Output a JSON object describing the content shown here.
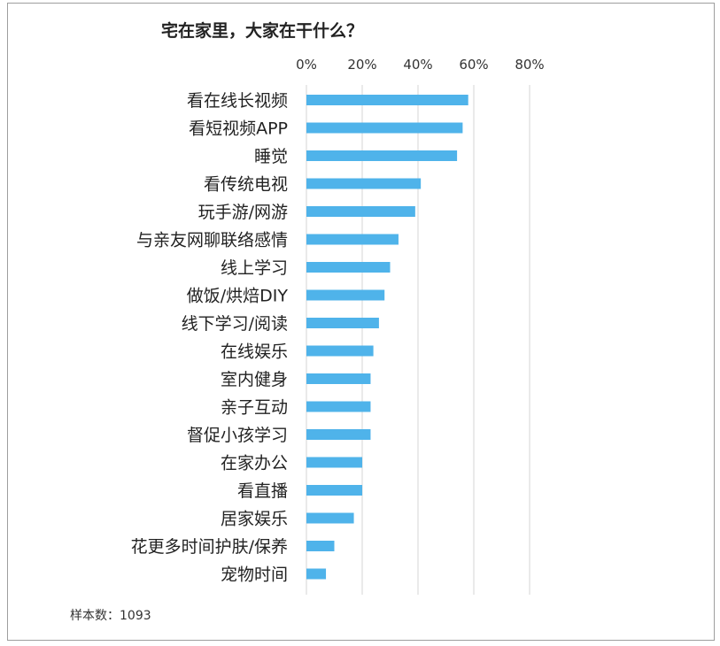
{
  "chart_data": {
    "type": "bar",
    "orientation": "horizontal",
    "title": "宅在家里，大家在干什么？",
    "xlabel": "",
    "ylabel": "",
    "xlim": [
      0,
      80
    ],
    "x_ticks": [
      0,
      20,
      40,
      60,
      80
    ],
    "x_tick_labels": [
      "0%",
      "20%",
      "40%",
      "60%",
      "80%"
    ],
    "tick_position": "top",
    "grid": true,
    "categories": [
      "看在线长视频",
      "看短视频APP",
      "睡觉",
      "看传统电视",
      "玩手游/网游",
      "与亲友网聊联络感情",
      "线上学习",
      "做饭/烘焙DIY",
      "线下学习/阅读",
      "在线娱乐",
      "室内健身",
      "亲子互动",
      "督促小孩学习",
      "在家办公",
      "看直播",
      "居家娱乐",
      "花更多时间护肤/保养",
      "宠物时间"
    ],
    "values": [
      58,
      56,
      54,
      41,
      39,
      33,
      30,
      28,
      26,
      24,
      23,
      23,
      23,
      20,
      20,
      17,
      10,
      7
    ],
    "color": "#4fb3ea",
    "footnote": "样本数：1093"
  }
}
